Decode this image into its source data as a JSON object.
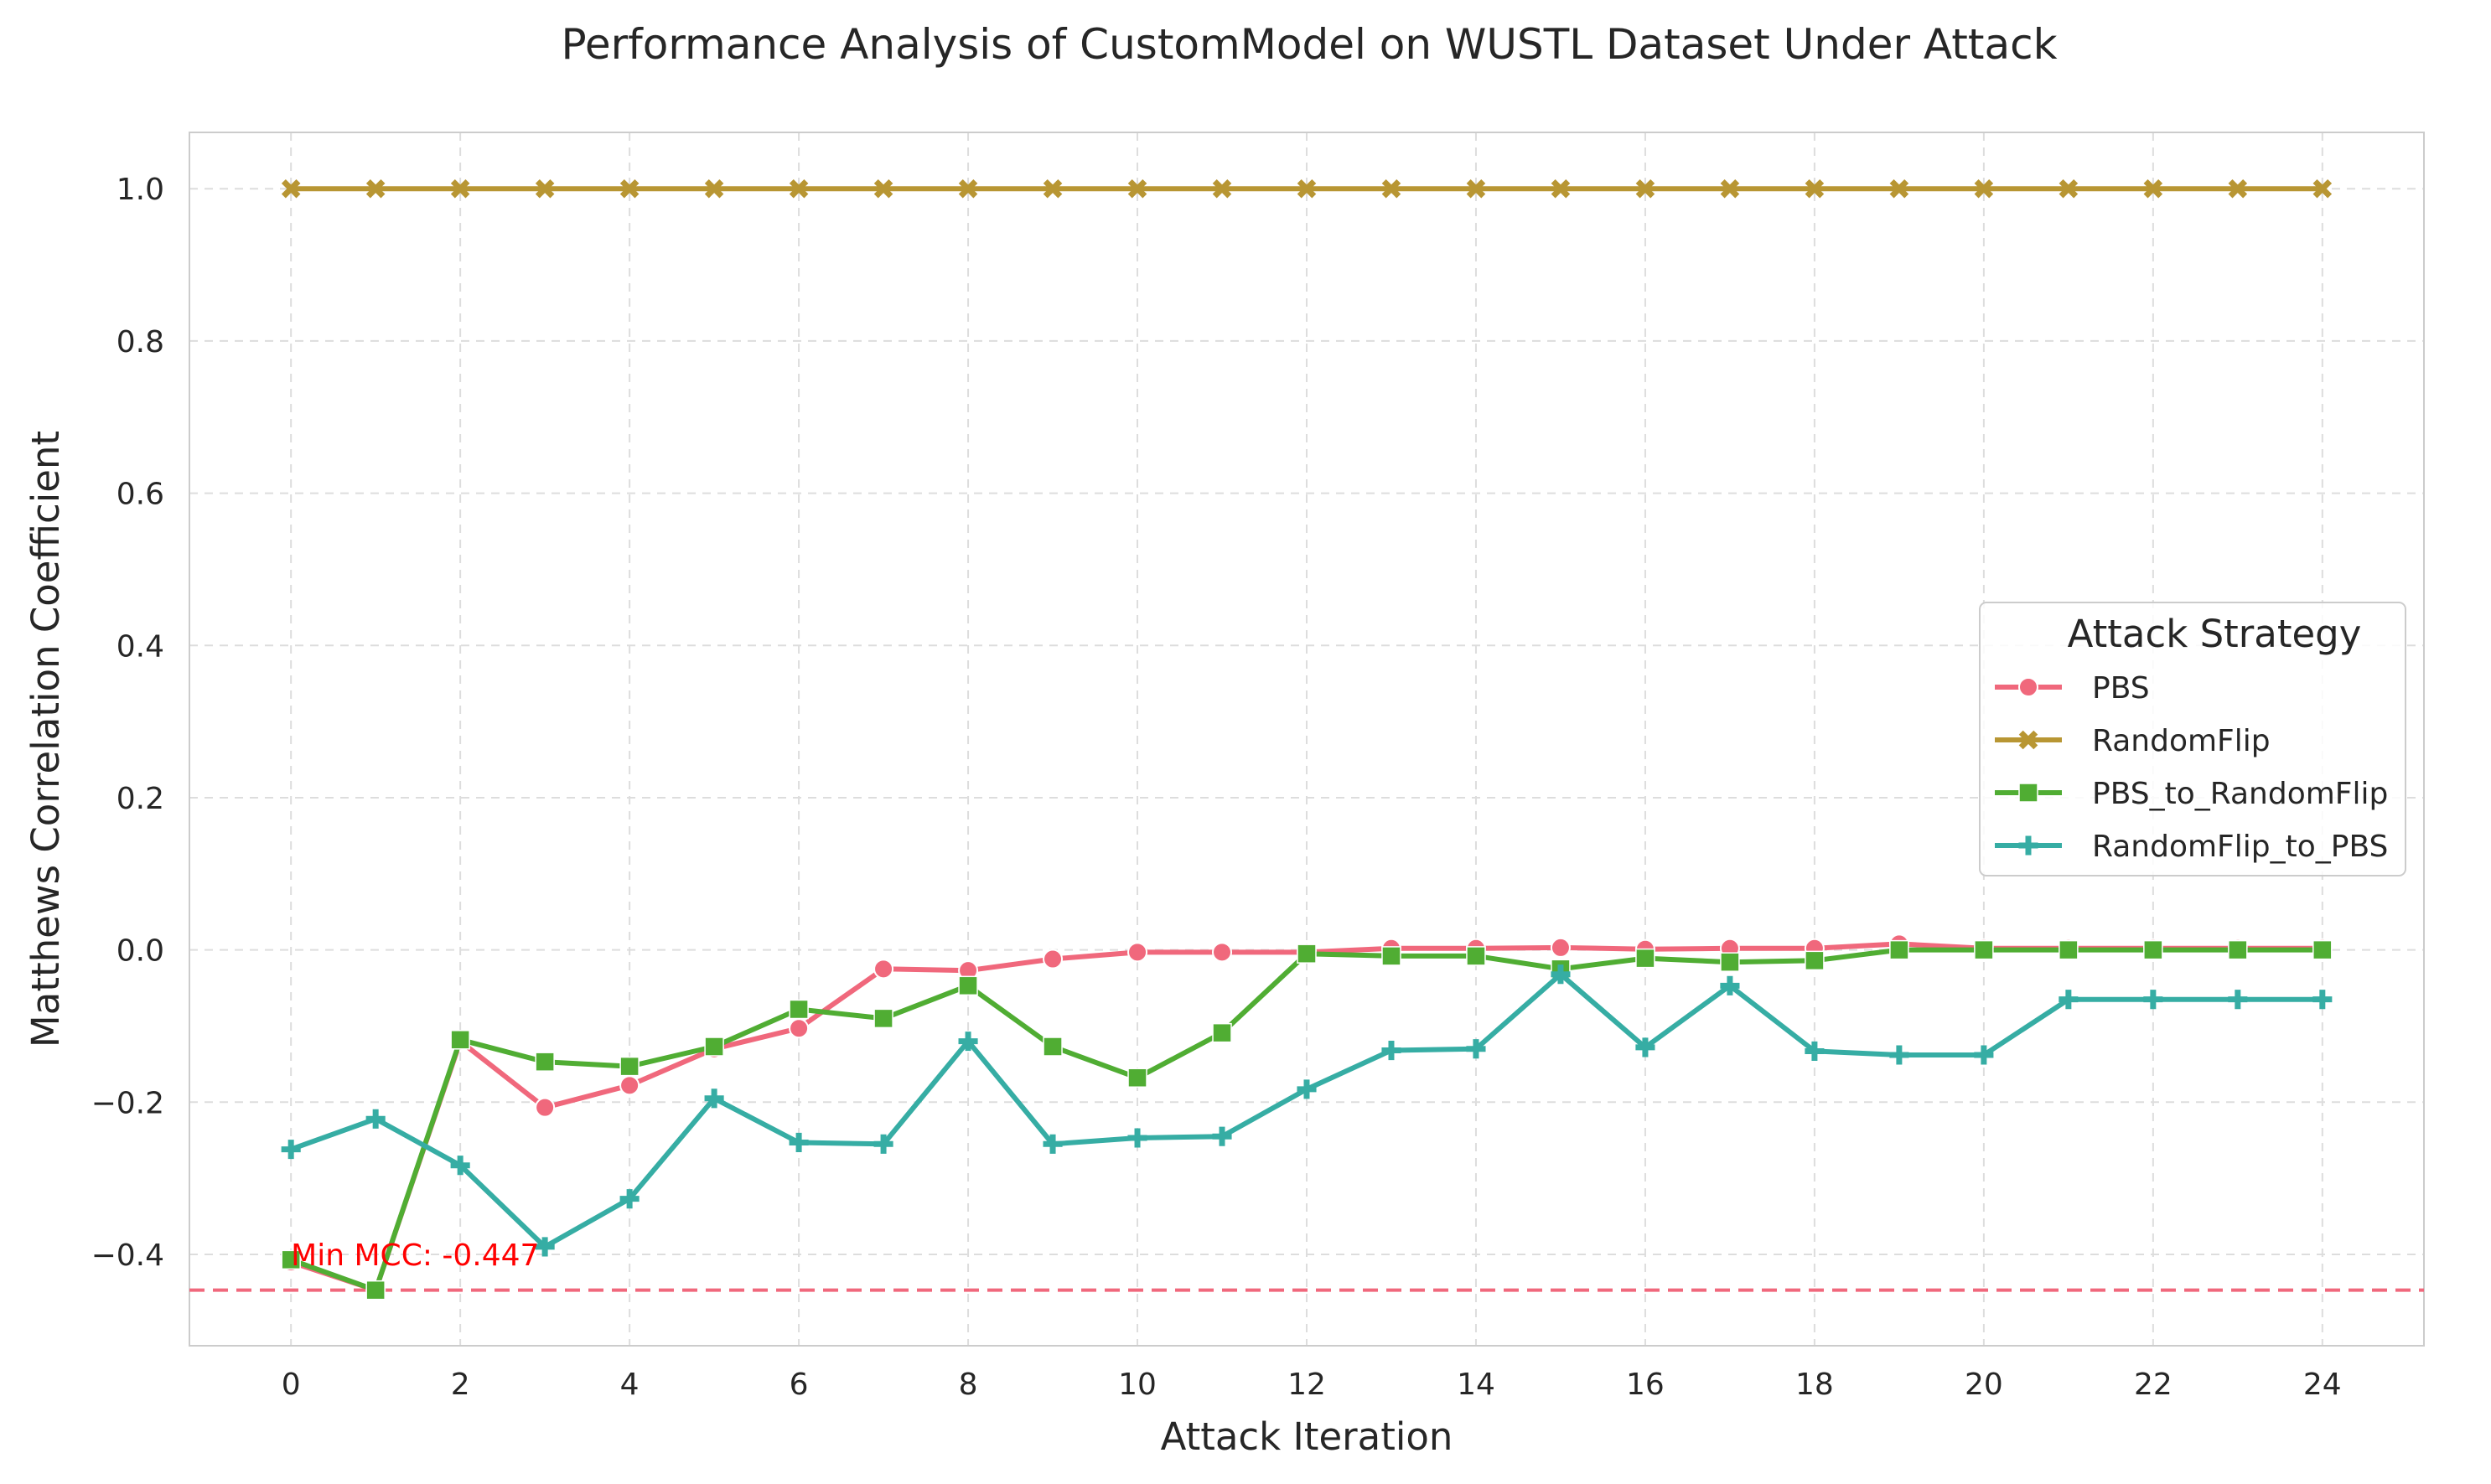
{
  "chart_data": {
    "type": "line",
    "title": "Performance Analysis of CustomModel on WUSTL Dataset Under Attack",
    "xlabel": "Attack Iteration",
    "ylabel": "Matthews Correlation Coefficient",
    "xlim": [
      -1.2,
      25.2
    ],
    "ylim": [
      -0.52,
      1.074
    ],
    "x_ticks": [
      0,
      2,
      4,
      6,
      8,
      10,
      12,
      14,
      16,
      18,
      20,
      22,
      24
    ],
    "y_ticks": [
      -0.4,
      -0.2,
      0.0,
      0.2,
      0.4,
      0.6,
      0.8,
      1.0
    ],
    "y_tick_labels": [
      "−0.4",
      "−0.2",
      "0.0",
      "0.2",
      "0.4",
      "0.6",
      "0.8",
      "1.0"
    ],
    "grid": true,
    "x": [
      0,
      1,
      2,
      3,
      4,
      5,
      6,
      7,
      8,
      9,
      10,
      11,
      12,
      13,
      14,
      15,
      16,
      17,
      18,
      19,
      20,
      21,
      22,
      23,
      24
    ],
    "series": [
      {
        "name": "PBS",
        "color": "#f0687c",
        "marker": "circle",
        "values": [
          -0.41,
          -0.447,
          -0.12,
          -0.207,
          -0.178,
          -0.13,
          -0.103,
          -0.025,
          -0.027,
          -0.012,
          -0.003,
          -0.003,
          -0.003,
          0.002,
          0.002,
          0.003,
          0.001,
          0.002,
          0.002,
          0.008,
          0.002,
          0.002,
          0.002,
          0.002,
          0.002
        ]
      },
      {
        "name": "RandomFlip",
        "color": "#b89633",
        "marker": "x",
        "values": [
          1,
          1,
          1,
          1,
          1,
          1,
          1,
          1,
          1,
          1,
          1,
          1,
          1,
          1,
          1,
          1,
          1,
          1,
          1,
          1,
          1,
          1,
          1,
          1,
          1
        ]
      },
      {
        "name": "PBS_to_RandomFlip",
        "color": "#50ad33",
        "marker": "square",
        "values": [
          -0.407,
          -0.447,
          -0.118,
          -0.147,
          -0.153,
          -0.127,
          -0.078,
          -0.09,
          -0.047,
          -0.127,
          -0.168,
          -0.109,
          -0.005,
          -0.008,
          -0.008,
          -0.025,
          -0.011,
          -0.016,
          -0.014,
          0.0,
          0.0,
          0.0,
          0.0,
          0.0,
          0.0
        ]
      },
      {
        "name": "RandomFlip_to_PBS",
        "color": "#36ada4",
        "marker": "plus",
        "values": [
          -0.262,
          -0.222,
          -0.283,
          -0.39,
          -0.327,
          -0.195,
          -0.253,
          -0.255,
          -0.12,
          -0.255,
          -0.247,
          -0.245,
          -0.183,
          -0.132,
          -0.13,
          -0.032,
          -0.128,
          -0.047,
          -0.133,
          -0.138,
          -0.138,
          -0.065,
          -0.065,
          -0.065,
          -0.065
        ]
      }
    ],
    "reference_line": {
      "y": -0.447,
      "color": "#f0687c",
      "style": "dashed"
    },
    "annotation": {
      "text": "Min MCC: -0.447",
      "x": 0,
      "y": -0.4,
      "color": "#ff0000"
    },
    "legend": {
      "title": "Attack Strategy",
      "placement": "center-right",
      "items": [
        "PBS",
        "RandomFlip",
        "PBS_to_RandomFlip",
        "RandomFlip_to_PBS"
      ]
    }
  }
}
